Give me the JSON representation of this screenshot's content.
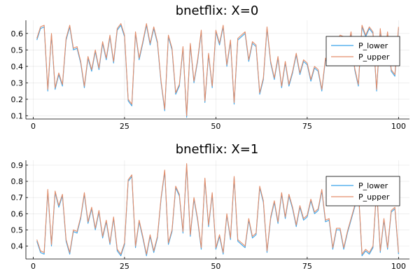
{
  "colors": {
    "series_lower": "#3aa4e9",
    "series_upper": "#e38d6a",
    "axis": "#000000",
    "grid": "#e6e6e6",
    "background": "#ffffff"
  },
  "chart_data": [
    {
      "type": "line",
      "title": "bnetflix: X=0",
      "xlabel": "",
      "ylabel": "",
      "xlim": [
        -2,
        103
      ],
      "ylim": [
        0.08,
        0.68
      ],
      "xticks": [
        0,
        25,
        50,
        75,
        100
      ],
      "yticks": [
        0.1,
        0.2,
        0.3,
        0.4,
        0.5,
        0.6
      ],
      "xtick_labels": [
        "0",
        "25",
        "50",
        "75",
        "100"
      ],
      "ytick_labels": [
        "0.1",
        "0.2",
        "0.3",
        "0.4",
        "0.5",
        "0.6"
      ],
      "grid": true,
      "legend_position": "top-right",
      "x": [
        1,
        2,
        3,
        4,
        5,
        6,
        7,
        8,
        9,
        10,
        11,
        12,
        13,
        14,
        15,
        16,
        17,
        18,
        19,
        20,
        21,
        22,
        23,
        24,
        25,
        26,
        27,
        28,
        29,
        30,
        31,
        32,
        33,
        34,
        35,
        36,
        37,
        38,
        39,
        40,
        41,
        42,
        43,
        44,
        45,
        46,
        47,
        48,
        49,
        50,
        51,
        52,
        53,
        54,
        55,
        56,
        57,
        58,
        59,
        60,
        61,
        62,
        63,
        64,
        65,
        66,
        67,
        68,
        69,
        70,
        71,
        72,
        73,
        74,
        75,
        76,
        77,
        78,
        79,
        80,
        81,
        82,
        83,
        84,
        85,
        86,
        87,
        88,
        89,
        90,
        91,
        92,
        93,
        94,
        95,
        96,
        97,
        98,
        99,
        100
      ],
      "series": [
        {
          "name": "P_lower",
          "values": [
            0.56,
            0.63,
            0.64,
            0.25,
            0.59,
            0.26,
            0.35,
            0.28,
            0.56,
            0.64,
            0.5,
            0.51,
            0.42,
            0.27,
            0.45,
            0.37,
            0.49,
            0.38,
            0.54,
            0.44,
            0.58,
            0.42,
            0.62,
            0.65,
            0.58,
            0.19,
            0.16,
            0.6,
            0.44,
            0.54,
            0.65,
            0.53,
            0.63,
            0.54,
            0.3,
            0.13,
            0.58,
            0.5,
            0.23,
            0.28,
            0.51,
            0.09,
            0.53,
            0.3,
            0.43,
            0.61,
            0.18,
            0.47,
            0.27,
            0.61,
            0.53,
            0.64,
            0.4,
            0.55,
            0.17,
            0.56,
            0.58,
            0.6,
            0.43,
            0.54,
            0.52,
            0.23,
            0.32,
            0.63,
            0.42,
            0.32,
            0.45,
            0.27,
            0.42,
            0.28,
            0.36,
            0.47,
            0.35,
            0.43,
            0.41,
            0.31,
            0.39,
            0.37,
            0.25,
            0.44,
            0.41,
            0.56,
            0.53,
            0.58,
            0.57,
            0.49,
            0.6,
            0.38,
            0.28,
            0.64,
            0.58,
            0.63,
            0.6,
            0.25,
            0.62,
            0.42,
            0.6,
            0.37,
            0.34,
            0.63
          ]
        },
        {
          "name": "P_upper",
          "values": [
            0.57,
            0.64,
            0.65,
            0.26,
            0.6,
            0.27,
            0.36,
            0.29,
            0.57,
            0.65,
            0.51,
            0.52,
            0.43,
            0.28,
            0.46,
            0.38,
            0.5,
            0.39,
            0.55,
            0.45,
            0.59,
            0.43,
            0.63,
            0.66,
            0.59,
            0.2,
            0.17,
            0.61,
            0.45,
            0.55,
            0.66,
            0.54,
            0.64,
            0.55,
            0.31,
            0.14,
            0.59,
            0.51,
            0.24,
            0.29,
            0.52,
            0.1,
            0.54,
            0.31,
            0.44,
            0.62,
            0.19,
            0.48,
            0.28,
            0.62,
            0.54,
            0.65,
            0.41,
            0.56,
            0.18,
            0.57,
            0.59,
            0.61,
            0.44,
            0.55,
            0.53,
            0.24,
            0.33,
            0.64,
            0.43,
            0.33,
            0.46,
            0.28,
            0.43,
            0.29,
            0.37,
            0.48,
            0.36,
            0.44,
            0.42,
            0.32,
            0.4,
            0.38,
            0.26,
            0.45,
            0.42,
            0.57,
            0.54,
            0.59,
            0.58,
            0.5,
            0.61,
            0.39,
            0.29,
            0.65,
            0.59,
            0.64,
            0.61,
            0.26,
            0.63,
            0.43,
            0.61,
            0.38,
            0.35,
            0.64
          ]
        }
      ]
    },
    {
      "type": "line",
      "title": "bnetflix: X=1",
      "xlabel": "",
      "ylabel": "",
      "xlim": [
        -2,
        103
      ],
      "ylim": [
        0.32,
        0.93
      ],
      "xticks": [
        0,
        25,
        50,
        75,
        100
      ],
      "yticks": [
        0.4,
        0.5,
        0.6,
        0.7,
        0.8,
        0.9
      ],
      "xtick_labels": [
        "0",
        "25",
        "50",
        "75",
        "100"
      ],
      "ytick_labels": [
        "0.4",
        "0.5",
        "0.6",
        "0.7",
        "0.8",
        "0.9"
      ],
      "grid": true,
      "legend_position": "top-right",
      "x": [
        1,
        2,
        3,
        4,
        5,
        6,
        7,
        8,
        9,
        10,
        11,
        12,
        13,
        14,
        15,
        16,
        17,
        18,
        19,
        20,
        21,
        22,
        23,
        24,
        25,
        26,
        27,
        28,
        29,
        30,
        31,
        32,
        33,
        34,
        35,
        36,
        37,
        38,
        39,
        40,
        41,
        42,
        43,
        44,
        45,
        46,
        47,
        48,
        49,
        50,
        51,
        52,
        53,
        54,
        55,
        56,
        57,
        58,
        59,
        60,
        61,
        62,
        63,
        64,
        65,
        66,
        67,
        68,
        69,
        70,
        71,
        72,
        73,
        74,
        75,
        76,
        77,
        78,
        79,
        80,
        81,
        82,
        83,
        84,
        85,
        86,
        87,
        88,
        89,
        90,
        91,
        92,
        93,
        94,
        95,
        96,
        97,
        98,
        99,
        100
      ],
      "series": [
        {
          "name": "P_lower",
          "values": [
            0.43,
            0.36,
            0.35,
            0.74,
            0.4,
            0.73,
            0.64,
            0.71,
            0.43,
            0.35,
            0.49,
            0.48,
            0.57,
            0.72,
            0.54,
            0.63,
            0.5,
            0.61,
            0.45,
            0.55,
            0.41,
            0.57,
            0.37,
            0.34,
            0.41,
            0.8,
            0.83,
            0.39,
            0.55,
            0.45,
            0.34,
            0.46,
            0.36,
            0.45,
            0.69,
            0.86,
            0.41,
            0.49,
            0.76,
            0.71,
            0.48,
            0.9,
            0.46,
            0.69,
            0.56,
            0.38,
            0.81,
            0.52,
            0.72,
            0.38,
            0.46,
            0.35,
            0.59,
            0.44,
            0.82,
            0.43,
            0.41,
            0.39,
            0.56,
            0.45,
            0.47,
            0.76,
            0.67,
            0.36,
            0.57,
            0.67,
            0.54,
            0.72,
            0.57,
            0.71,
            0.63,
            0.52,
            0.64,
            0.56,
            0.58,
            0.68,
            0.6,
            0.62,
            0.74,
            0.55,
            0.56,
            0.38,
            0.5,
            0.5,
            0.38,
            0.48,
            0.56,
            0.64,
            0.75,
            0.34,
            0.37,
            0.35,
            0.39,
            0.75,
            0.36,
            0.56,
            0.38,
            0.61,
            0.63,
            0.35
          ]
        },
        {
          "name": "P_upper",
          "values": [
            0.44,
            0.37,
            0.36,
            0.75,
            0.41,
            0.74,
            0.65,
            0.72,
            0.44,
            0.36,
            0.5,
            0.49,
            0.58,
            0.73,
            0.55,
            0.64,
            0.51,
            0.62,
            0.46,
            0.56,
            0.42,
            0.58,
            0.38,
            0.35,
            0.42,
            0.81,
            0.84,
            0.4,
            0.56,
            0.46,
            0.35,
            0.47,
            0.37,
            0.46,
            0.7,
            0.87,
            0.42,
            0.5,
            0.77,
            0.72,
            0.49,
            0.91,
            0.47,
            0.7,
            0.57,
            0.39,
            0.82,
            0.53,
            0.73,
            0.39,
            0.47,
            0.36,
            0.6,
            0.45,
            0.83,
            0.44,
            0.42,
            0.4,
            0.57,
            0.46,
            0.48,
            0.77,
            0.68,
            0.37,
            0.58,
            0.68,
            0.55,
            0.73,
            0.58,
            0.72,
            0.64,
            0.53,
            0.65,
            0.57,
            0.59,
            0.69,
            0.61,
            0.63,
            0.75,
            0.56,
            0.57,
            0.39,
            0.51,
            0.51,
            0.39,
            0.49,
            0.57,
            0.65,
            0.76,
            0.35,
            0.38,
            0.36,
            0.4,
            0.76,
            0.37,
            0.57,
            0.39,
            0.62,
            0.64,
            0.36
          ]
        }
      ]
    }
  ]
}
